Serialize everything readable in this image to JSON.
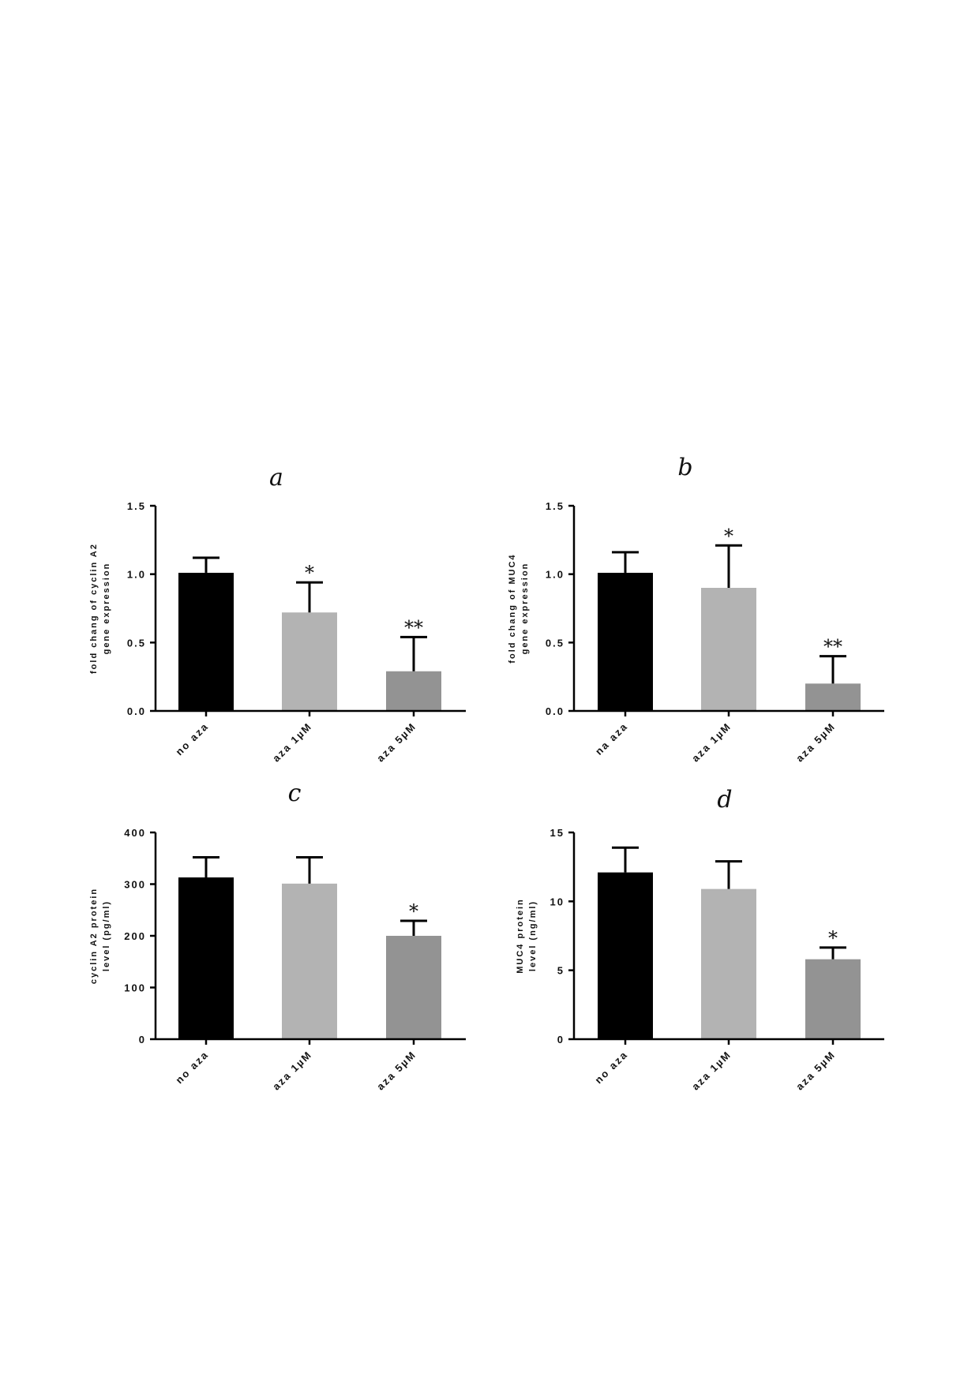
{
  "chart_data": [
    {
      "panel": "a",
      "type": "bar",
      "title": "a",
      "ylabel": [
        "fold chang of cyclin A2",
        "gene expression"
      ],
      "ylim": [
        0,
        1.5
      ],
      "ticks": [
        "0.0",
        "0.5",
        "1.0",
        "1.5"
      ],
      "tick_values": [
        0,
        0.5,
        1.0,
        1.5
      ],
      "categories": [
        "no aza",
        "aza 1µM",
        "aza 5µM"
      ],
      "values": [
        1.01,
        0.72,
        0.29
      ],
      "errors": [
        0.11,
        0.22,
        0.25
      ],
      "significance": [
        "",
        "*",
        "**"
      ],
      "colors": [
        "#000000",
        "#b3b3b3",
        "#939393"
      ]
    },
    {
      "panel": "b",
      "type": "bar",
      "title": "b",
      "ylabel": [
        "fold chang of MUC4",
        "gene expression"
      ],
      "ylim": [
        0,
        1.5
      ],
      "ticks": [
        "0.0",
        "0.5",
        "1.0",
        "1.5"
      ],
      "tick_values": [
        0,
        0.5,
        1.0,
        1.5
      ],
      "categories": [
        "na aza",
        "aza 1µM",
        "aza 5µM"
      ],
      "values": [
        1.01,
        0.9,
        0.2
      ],
      "errors": [
        0.15,
        0.31,
        0.2
      ],
      "significance": [
        "",
        "*",
        "**"
      ],
      "colors": [
        "#000000",
        "#b3b3b3",
        "#939393"
      ]
    },
    {
      "panel": "c",
      "type": "bar",
      "title": "c",
      "ylabel": [
        "cyclin A2  protein",
        "level (pg/ml)"
      ],
      "ylim": [
        0,
        400
      ],
      "ticks": [
        "0",
        "100",
        "200",
        "300",
        "400"
      ],
      "tick_values": [
        0,
        100,
        200,
        300,
        400
      ],
      "categories": [
        "no aza",
        "aza 1µM",
        "aza 5µM"
      ],
      "values": [
        313,
        301,
        200
      ],
      "errors": [
        39,
        51,
        29
      ],
      "significance": [
        "",
        "",
        "*"
      ],
      "colors": [
        "#000000",
        "#b3b3b3",
        "#939393"
      ]
    },
    {
      "panel": "d",
      "type": "bar",
      "title": "d",
      "ylabel": [
        "MUC4 protein",
        "level (ng/ml)"
      ],
      "ylim": [
        0,
        15
      ],
      "ticks": [
        "0",
        "5",
        "10",
        "15"
      ],
      "tick_values": [
        0,
        5,
        10,
        15
      ],
      "categories": [
        "no aza",
        "aza 1µM",
        "aza 5µM"
      ],
      "values": [
        12.1,
        10.9,
        5.8
      ],
      "errors": [
        1.8,
        2.0,
        0.85
      ],
      "significance": [
        "",
        "",
        "*"
      ],
      "colors": [
        "#000000",
        "#b3b3b3",
        "#939393"
      ]
    }
  ]
}
